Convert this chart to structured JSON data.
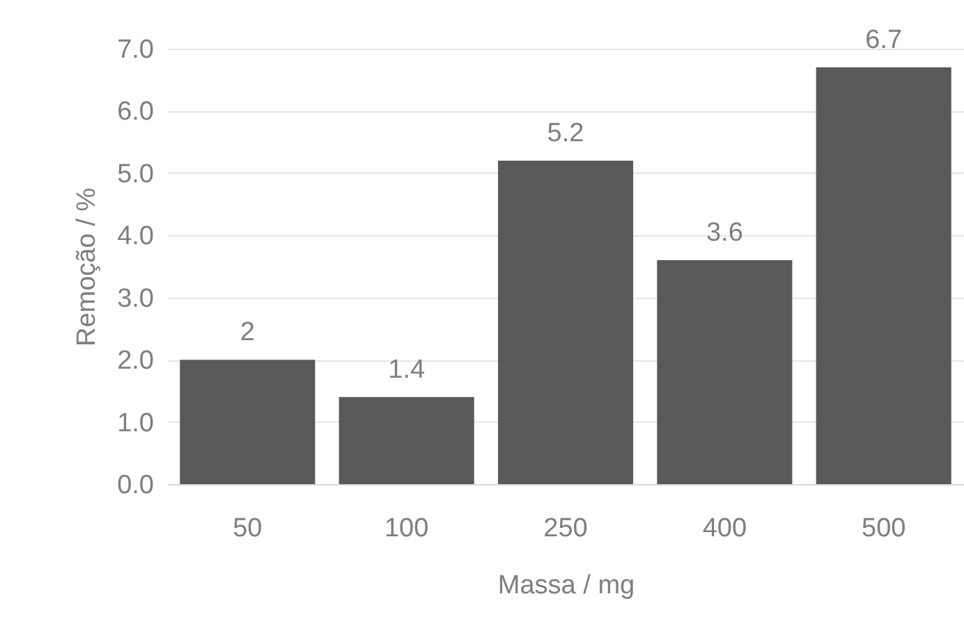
{
  "chart_data": {
    "type": "bar",
    "xlabel": "Massa / mg",
    "ylabel": "Remoção / %",
    "categories": [
      "50",
      "100",
      "250",
      "400",
      "500"
    ],
    "values": [
      2,
      1.4,
      5.2,
      3.6,
      6.7
    ],
    "color": "#595959",
    "ylim": [
      0,
      7
    ],
    "yticks": [
      {
        "value": 0,
        "label": "0.0"
      },
      {
        "value": 1,
        "label": "1.0"
      },
      {
        "value": 2,
        "label": "2.0"
      },
      {
        "value": 3,
        "label": "3.0"
      },
      {
        "value": 4,
        "label": "4.0"
      },
      {
        "value": 5,
        "label": "5.0"
      },
      {
        "value": 6,
        "label": "6.0"
      },
      {
        "value": 7,
        "label": "7.0"
      }
    ],
    "grid": "y",
    "data_labels": true
  }
}
